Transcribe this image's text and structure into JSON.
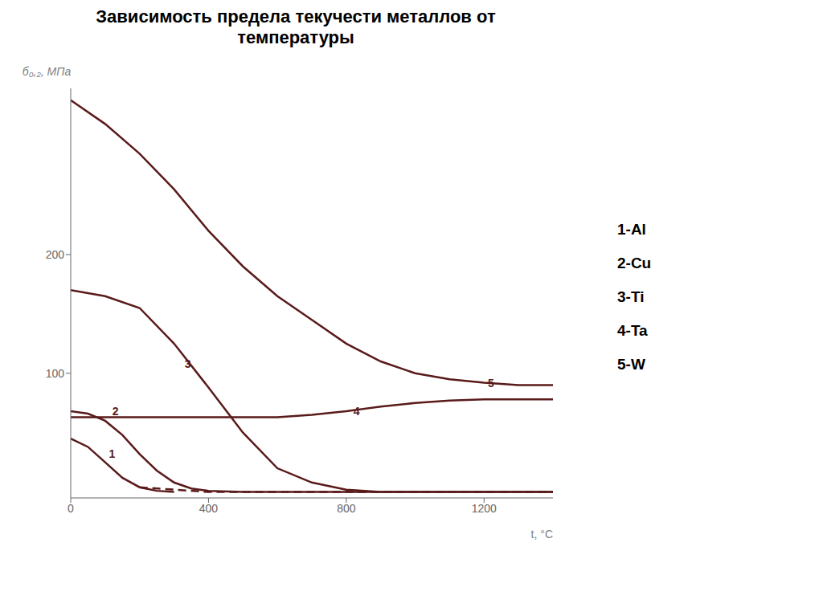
{
  "chart_data": {
    "type": "line",
    "title": "Зависимость предела текучести металлов от\nтемпературы",
    "x_label": "t, °C",
    "y_label": "б₀,₂, МПа",
    "xlim": [
      0,
      1400
    ],
    "ylim": [
      -5,
      340
    ],
    "xticks": [
      0,
      400,
      800,
      1200
    ],
    "yticks": [
      100,
      200
    ],
    "grid": false,
    "legend": "right",
    "legend_items": [
      "1-Al",
      "2-Cu",
      "3-Ti",
      "4-Ta",
      "5-W"
    ],
    "series": [
      {
        "color": "#5a1a1a",
        "line_style": "solid",
        "x": [
          0,
          100,
          200,
          300,
          400,
          500,
          600,
          700,
          800,
          900,
          1000,
          1100,
          1200,
          1300,
          1400
        ],
        "values": [
          330,
          310,
          285,
          255,
          220,
          190,
          165,
          145,
          125,
          110,
          100,
          95,
          92,
          90,
          90
        ]
      },
      {
        "color": "#5a1a1a",
        "line_style": "solid",
        "x": [
          0,
          100,
          200,
          300,
          400,
          500,
          600,
          700,
          800,
          900,
          1000,
          1200,
          1400
        ],
        "values": [
          170,
          165,
          155,
          125,
          88,
          50,
          20,
          8,
          2,
          0,
          0,
          0,
          0
        ]
      },
      {
        "color": "#5a1a1a",
        "line_style": "solid",
        "x": [
          0,
          200,
          400,
          600,
          700,
          800,
          900,
          1000,
          1100,
          1200,
          1300,
          1400
        ],
        "values": [
          63,
          63,
          63,
          63,
          65,
          68,
          72,
          75,
          77,
          78,
          78,
          78
        ]
      },
      {
        "color": "#5a1a1a",
        "line_style": "solid",
        "x": [
          0,
          50,
          100,
          150,
          200,
          250,
          300,
          350,
          400,
          500,
          600,
          800,
          1000,
          1400
        ],
        "values": [
          68,
          66,
          60,
          48,
          32,
          18,
          8,
          3,
          1,
          0,
          0,
          0,
          0,
          0
        ]
      },
      {
        "color": "#5a1a1a",
        "line_style": "solid",
        "x": [
          0,
          50,
          100,
          150,
          200,
          250,
          300
        ],
        "values": [
          45,
          38,
          25,
          12,
          4,
          1,
          0
        ]
      },
      {
        "color": "#5a1a1a",
        "line_style": "dashed",
        "x": [
          200,
          400,
          600,
          800,
          1000,
          1200,
          1400
        ],
        "values": [
          4,
          0,
          0,
          0,
          0,
          0,
          0
        ]
      }
    ],
    "annotations": [
      {
        "text": "1",
        "x": 120,
        "y": 32
      },
      {
        "text": "2",
        "x": 130,
        "y": 68
      },
      {
        "text": "3",
        "x": 340,
        "y": 108
      },
      {
        "text": "4",
        "x": 830,
        "y": 68
      },
      {
        "text": "5",
        "x": 1220,
        "y": 92
      }
    ]
  }
}
